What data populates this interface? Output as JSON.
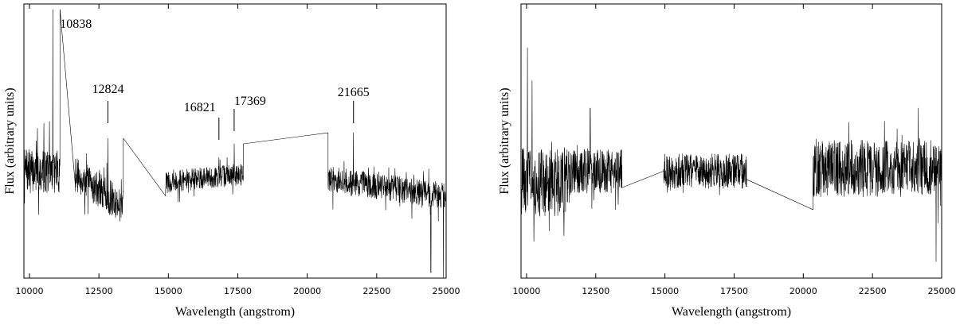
{
  "chart_data": [
    {
      "type": "line",
      "title": "",
      "xlabel": "Wavelength (angstrom)",
      "ylabel": "Flux (arbitrary units)",
      "xlim": [
        9800,
        25000
      ],
      "ylim": [
        0,
        1
      ],
      "xticks": [
        10000,
        12500,
        15000,
        17500,
        20000,
        22500,
        25000
      ],
      "xtick_labels": [
        "10000",
        "12500",
        "15000",
        "17500",
        "20000",
        "22500",
        "25000"
      ],
      "grid": false,
      "noise_seed": 7,
      "annotations": [
        {
          "text": "10838",
          "x": 10838
        },
        {
          "text": "12824",
          "x": 12824
        },
        {
          "text": "16821",
          "x": 16821
        },
        {
          "text": "17369",
          "x": 17369
        },
        {
          "text": "21665",
          "x": 21665
        }
      ],
      "series": [
        {
          "segments": [
            {
              "x0": 9800,
              "x1": 11100,
              "base": 0.39,
              "amp": 0.1,
              "step": 8
            },
            {
              "x0": 11100,
              "x1": 11650,
              "base": 0.34,
              "amp": 0.0,
              "step": 550
            },
            {
              "x0": 11650,
              "x1": 13380,
              "base": 0.38,
              "amp": 0.08,
              "step": 8,
              "trend": -0.12
            },
            {
              "x0": 13380,
              "x1": 14900,
              "base": 0.24,
              "amp": 0.0,
              "step": 1520,
              "trend": 0.06
            },
            {
              "x0": 14900,
              "x1": 17700,
              "base": 0.35,
              "amp": 0.05,
              "step": 8,
              "trend": 0.03
            },
            {
              "x0": 17700,
              "x1": 20750,
              "base": 0.38,
              "amp": 0.0,
              "step": 3050,
              "trend": -0.08
            },
            {
              "x0": 20750,
              "x1": 25000,
              "base": 0.36,
              "amp": 0.06,
              "step": 8,
              "trend": -0.06
            }
          ],
          "peaks": [
            {
              "x": 10838,
              "y": 0.98
            },
            {
              "x": 12824,
              "y": 0.51
            },
            {
              "x": 16821,
              "y": 0.44
            },
            {
              "x": 17369,
              "y": 0.49
            },
            {
              "x": 21665,
              "y": 0.53
            },
            {
              "x": 24450,
              "y": 0.02
            },
            {
              "x": 24900,
              "y": 0.0
            }
          ]
        }
      ]
    },
    {
      "type": "line",
      "title": "",
      "xlabel": "Wavelength (angstrom)",
      "ylabel": "Flux (arbitrary units)",
      "xlim": [
        9800,
        25000
      ],
      "ylim": [
        0,
        1
      ],
      "xticks": [
        10000,
        12500,
        15000,
        17500,
        20000,
        22500,
        25000
      ],
      "xtick_labels": [
        "10000",
        "12500",
        "15000",
        "17500",
        "20000",
        "22500",
        "25000"
      ],
      "grid": false,
      "noise_seed": 31,
      "annotations": [],
      "series": [
        {
          "segments": [
            {
              "x0": 9800,
              "x1": 11600,
              "base": 0.35,
              "amp": 0.16,
              "step": 8
            },
            {
              "x0": 11600,
              "x1": 13450,
              "base": 0.39,
              "amp": 0.1,
              "step": 8
            },
            {
              "x0": 13450,
              "x1": 14950,
              "base": 0.33,
              "amp": 0.0,
              "step": 1500,
              "trend": 0.06
            },
            {
              "x0": 14950,
              "x1": 17950,
              "base": 0.39,
              "amp": 0.08,
              "step": 8
            },
            {
              "x0": 17950,
              "x1": 20350,
              "base": 0.36,
              "amp": 0.0,
              "step": 2400,
              "trend": -0.11
            },
            {
              "x0": 20350,
              "x1": 25000,
              "base": 0.4,
              "amp": 0.13,
              "step": 8
            }
          ],
          "peaks": [
            {
              "x": 10030,
              "y": 0.84
            },
            {
              "x": 10200,
              "y": 0.72
            },
            {
              "x": 12300,
              "y": 0.62
            },
            {
              "x": 24150,
              "y": 0.62
            },
            {
              "x": 24800,
              "y": 0.06
            }
          ]
        }
      ]
    }
  ]
}
